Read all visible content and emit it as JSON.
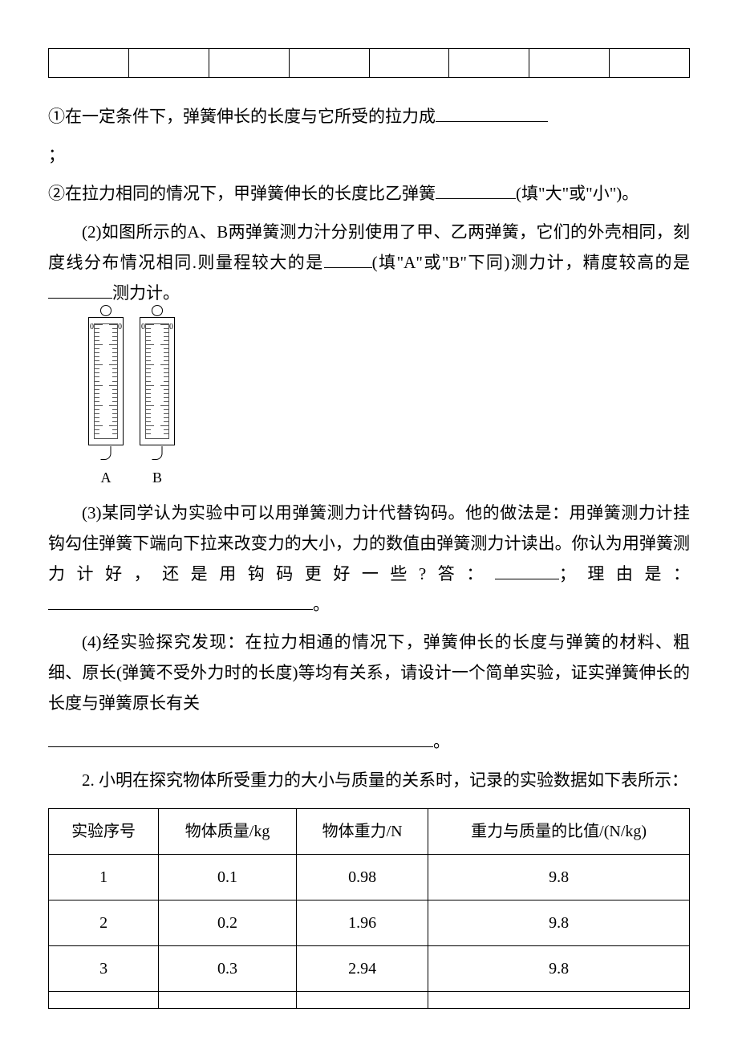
{
  "empty_table": {
    "cols": 8,
    "rows": 1
  },
  "q1": {
    "line1": "①在一定条件下，弹簧伸长的长度与它所受的拉力成",
    "line1_end": "；",
    "line2_a": "②在拉力相同的情况下，甲弹簧伸长的长度比乙弹簧",
    "line2_b": "(填\"大\"或\"小\")。"
  },
  "q2": {
    "text_a": "(2)如图所示的A、B两弹簧测力汁分别使用了甲、乙两弹簧，它们的外壳相同，刻度线分布情况相同.则量程较大的是",
    "text_b": "(填\"A\"或\"B\"下同)测力计，精度较高的是",
    "text_c": "测力计。"
  },
  "gauges": {
    "labels": [
      "A",
      "B"
    ],
    "zero": "0"
  },
  "q3": {
    "text_a": "(3)某同学认为实验中可以用弹簧测力计代替钩码。他的做法是：用弹簧测力计挂钩勾住弹簧下端向下拉来改变力的大小，力的数值由弹簧测力计读出。你认为用弹簧测力计好，还是用钩码更好一些?答：",
    "text_b": "；理由是：",
    "text_c": "。"
  },
  "q4": {
    "text": "(4)经实验探究发现：在拉力相通的情况下，弹簧伸长的长度与弹簧的材料、粗细、原长(弹簧不受外力时的长度)等均有关系，请设计一个简单实验，证实弹簧伸长的长度与弹簧原长有关",
    "end": "。"
  },
  "q_main2": {
    "text": "2. 小明在探究物体所受重力的大小与质量的关系时，记录的实验数据如下表所示："
  },
  "data_table": {
    "headers": [
      "实验序号",
      "物体质量/kg",
      "物体重力/N",
      "重力与质量的比值/(N/kg)"
    ],
    "rows": [
      [
        "1",
        "0.1",
        "0.98",
        "9.8"
      ],
      [
        "2",
        "0.2",
        "1.96",
        "9.8"
      ],
      [
        "3",
        "0.3",
        "2.94",
        "9.8"
      ],
      [
        "",
        "",
        "",
        ""
      ]
    ]
  }
}
